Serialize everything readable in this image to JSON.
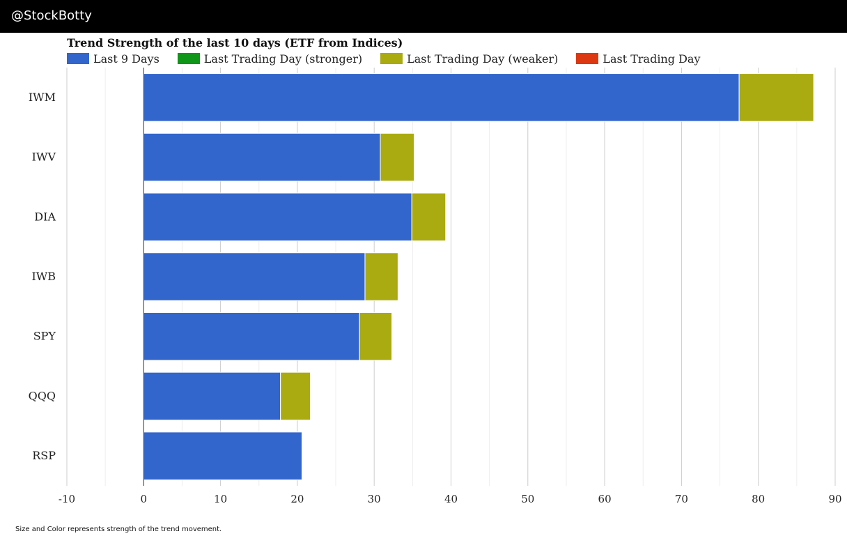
{
  "header": {
    "brand": "@StockBotty"
  },
  "footer": {
    "note": "Size and Color represents strength of the trend movement."
  },
  "colors": {
    "last9": "#3366cc",
    "stronger": "#109618",
    "weaker": "#aaaa11",
    "last": "#dc3912",
    "grid_major": "#cccccc",
    "grid_minor": "#eeeeee",
    "axis": "#333333",
    "text": "#222222"
  },
  "chart_data": {
    "type": "bar",
    "orientation": "horizontal",
    "stacked": true,
    "title": "Trend Strength of the last 10 days (ETF from Indices)",
    "xlabel": "",
    "ylabel": "",
    "xlim": [
      -10,
      90
    ],
    "xticks": [
      -10,
      0,
      10,
      20,
      30,
      40,
      50,
      60,
      70,
      80,
      90
    ],
    "legend_position": "top-left",
    "legend": [
      {
        "name": "Last 9 Days",
        "color": "#3366cc"
      },
      {
        "name": "Last Trading Day (stronger)",
        "color": "#109618"
      },
      {
        "name": "Last Trading Day (weaker)",
        "color": "#aaaa11"
      },
      {
        "name": "Last Trading Day",
        "color": "#dc3912"
      }
    ],
    "categories": [
      "IWM",
      "IWV",
      "DIA",
      "IWB",
      "SPY",
      "QQQ",
      "RSP"
    ],
    "series": [
      {
        "name": "Last 9 Days",
        "values": [
          77.5,
          30.8,
          34.9,
          28.8,
          28.1,
          17.8,
          20.6
        ]
      },
      {
        "name": "Last Trading Day (weaker)",
        "values": [
          9.7,
          4.4,
          4.4,
          4.3,
          4.2,
          3.9,
          0
        ]
      }
    ]
  }
}
